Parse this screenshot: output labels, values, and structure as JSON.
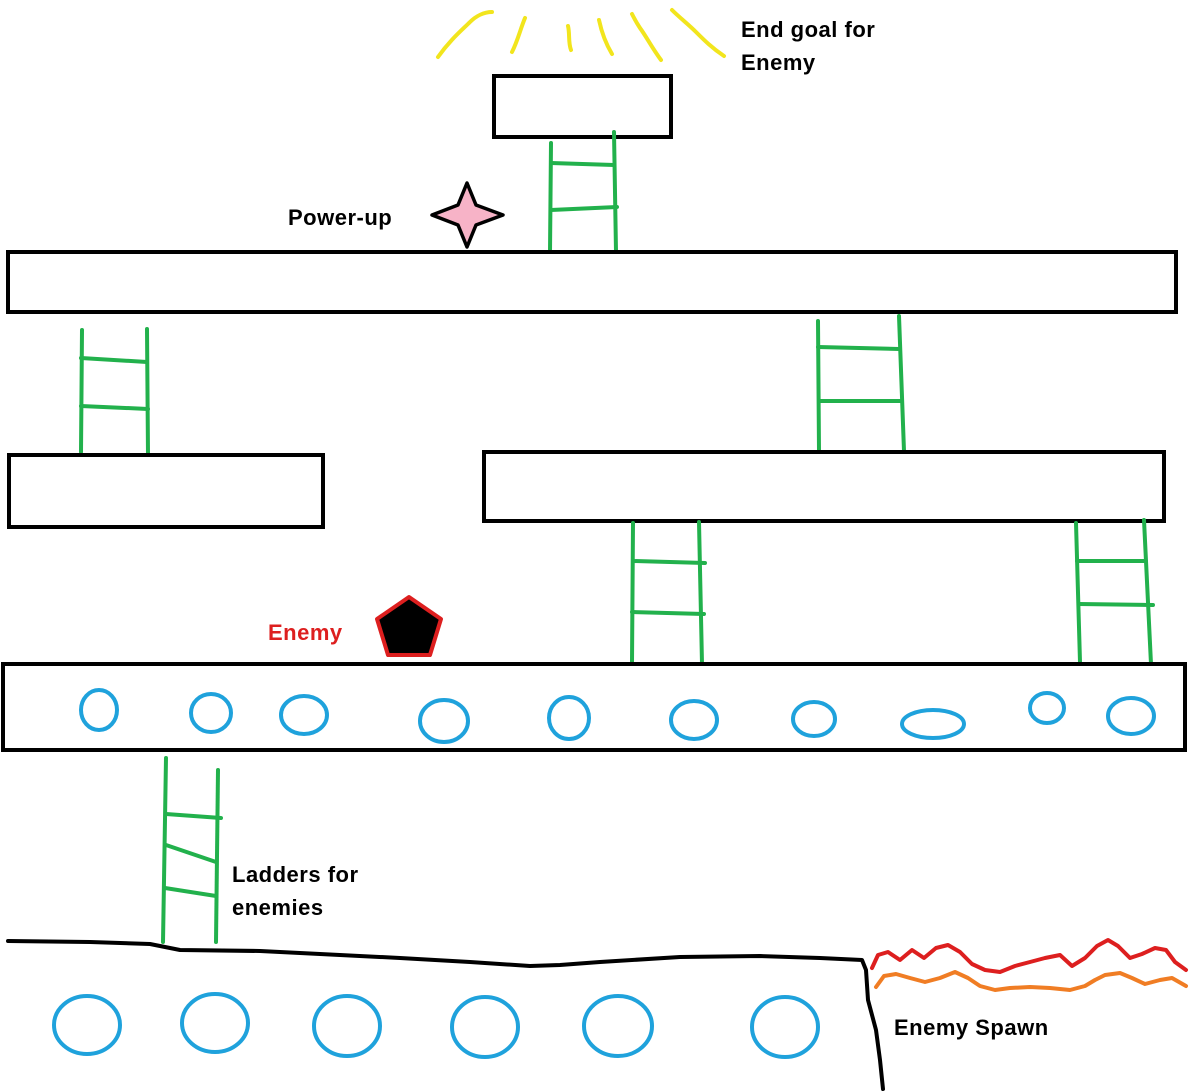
{
  "labels": {
    "end_goal_line1": "End goal for",
    "end_goal_line2": "Enemy",
    "power_up": "Power-up",
    "enemy": "Enemy",
    "ladders_line1": "Ladders for",
    "ladders_line2": "enemies",
    "enemy_spawn": "Enemy Spawn"
  },
  "colors": {
    "outline": "#000000",
    "ladder": "#22b14c",
    "water": "#1fa2dc",
    "goal_rays": "#f2e51d",
    "power_up_fill": "#f7b3c7",
    "enemy_outline": "#dd1f1f",
    "enemy_fill": "#000000",
    "spawn_red": "#dd1f1f",
    "spawn_orange": "#f07d24"
  },
  "icons": {
    "goal": "glow-rays-icon",
    "power_up": "four-point-star-icon",
    "enemy": "pentagon-icon",
    "spawn": "wavy-fire-icon"
  }
}
